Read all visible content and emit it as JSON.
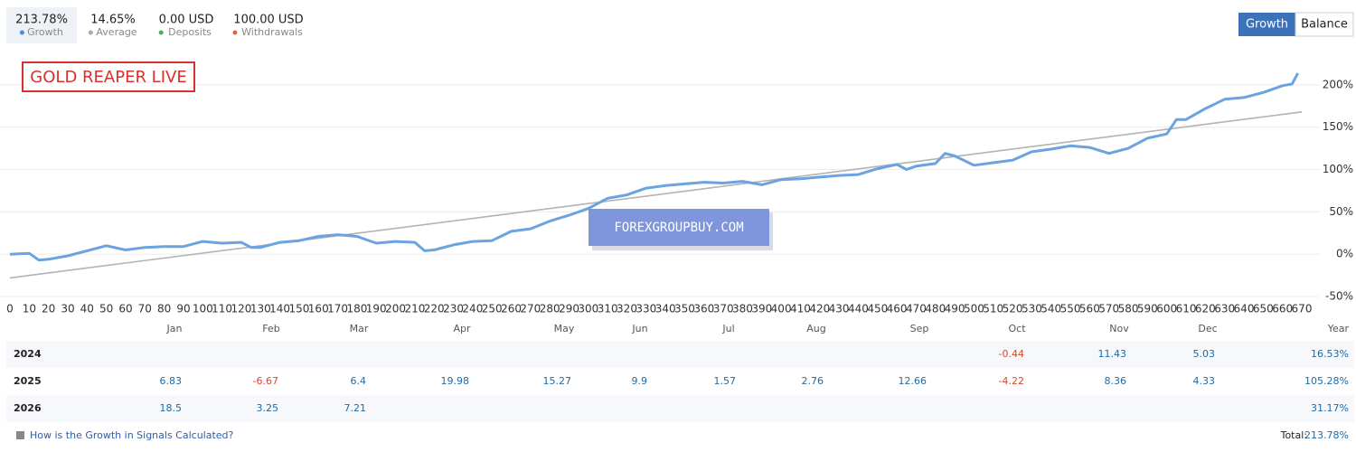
{
  "stats": [
    {
      "value": "213.78%",
      "label": "Growth",
      "color": "#4a90d9"
    },
    {
      "value": "14.65%",
      "label": "Average",
      "color": "#aaaaaa"
    },
    {
      "value": "0.00 USD",
      "label": "Deposits",
      "color": "#4caf50"
    },
    {
      "value": "100.00 USD",
      "label": "Withdrawals",
      "color": "#e8603c"
    }
  ],
  "buttons": [
    "Growth",
    "Balance"
  ],
  "annotations": {
    "label": "GOLD REAPER LIVE",
    "watermark": "FOREXGROUPBUY.COM"
  },
  "chart_data": {
    "type": "line",
    "xlim": [
      0,
      670
    ],
    "xticks": [
      0,
      10,
      20,
      30,
      40,
      50,
      60,
      70,
      80,
      90,
      100,
      110,
      120,
      130,
      140,
      150,
      160,
      170,
      180,
      190,
      200,
      210,
      220,
      230,
      240,
      250,
      260,
      270,
      280,
      290,
      300,
      310,
      320,
      330,
      340,
      350,
      360,
      370,
      380,
      390,
      400,
      410,
      420,
      430,
      440,
      450,
      460,
      470,
      480,
      490,
      500,
      510,
      520,
      530,
      540,
      550,
      560,
      570,
      580,
      590,
      600,
      610,
      620,
      630,
      640,
      650,
      660,
      670
    ],
    "ylim": [
      -50,
      250
    ],
    "yticks": [
      {
        "value": -50,
        "label": "-50%"
      },
      {
        "value": 0,
        "label": "0%"
      },
      {
        "value": 50,
        "label": "50%"
      },
      {
        "value": 100,
        "label": "100%"
      },
      {
        "value": 150,
        "label": "150%"
      },
      {
        "value": 200,
        "label": "200%"
      }
    ],
    "grid": true,
    "series": [
      {
        "color": "#6aa3e0",
        "x": [
          0,
          10,
          15,
          20,
          30,
          40,
          50,
          60,
          70,
          80,
          90,
          100,
          110,
          120,
          125,
          130,
          140,
          150,
          160,
          170,
          180,
          190,
          200,
          210,
          215,
          220,
          230,
          240,
          250,
          260,
          270,
          280,
          290,
          300,
          310,
          320,
          330,
          340,
          350,
          360,
          370,
          380,
          390,
          400,
          410,
          420,
          430,
          440,
          450,
          460,
          465,
          470,
          480,
          485,
          490,
          500,
          510,
          520,
          530,
          540,
          550,
          560,
          570,
          580,
          590,
          600,
          605,
          610,
          620,
          630,
          640,
          650,
          660,
          665,
          668
        ],
        "values": [
          0,
          1,
          -7,
          -6,
          -2,
          4,
          10,
          5,
          8,
          9,
          9,
          15,
          13,
          14,
          8,
          8,
          14,
          16,
          21,
          23,
          21,
          13,
          15,
          14,
          4,
          5,
          11,
          15,
          16,
          27,
          30,
          39,
          46,
          54,
          66,
          70,
          78,
          81,
          83,
          85,
          84,
          86,
          82,
          88,
          89,
          91,
          93,
          94,
          101,
          106,
          100,
          104,
          107,
          119,
          116,
          105,
          108,
          111,
          121,
          124,
          128,
          126,
          119,
          125,
          137,
          142,
          159,
          159,
          172,
          183,
          185,
          191,
          199,
          201,
          213.78
        ]
      },
      {
        "color": "#b3b3b3",
        "x": [
          0,
          670
        ],
        "values": [
          -28,
          168
        ]
      }
    ]
  },
  "table": {
    "columns": [
      "Jan",
      "Feb",
      "Mar",
      "Apr",
      "May",
      "Jun",
      "Jul",
      "Aug",
      "Sep",
      "Oct",
      "Nov",
      "Dec",
      "Year"
    ],
    "rows": [
      {
        "year": "2024",
        "values": [
          null,
          null,
          null,
          null,
          null,
          null,
          null,
          null,
          null,
          -0.44,
          11.43,
          5.03
        ],
        "total": "16.53%"
      },
      {
        "year": "2025",
        "values": [
          6.83,
          -6.67,
          6.4,
          19.98,
          15.27,
          9.9,
          1.57,
          2.76,
          12.66,
          -4.22,
          8.36,
          4.33
        ],
        "total": "105.28%"
      },
      {
        "year": "2026",
        "values": [
          18.5,
          3.25,
          7.21,
          null,
          null,
          null,
          null,
          null,
          null,
          null,
          null,
          null
        ],
        "total": "31.17%"
      }
    ]
  },
  "footer": {
    "link": "How is the Growth in Signals Calculated?",
    "total_label": "Total:",
    "total": "213.78%"
  }
}
